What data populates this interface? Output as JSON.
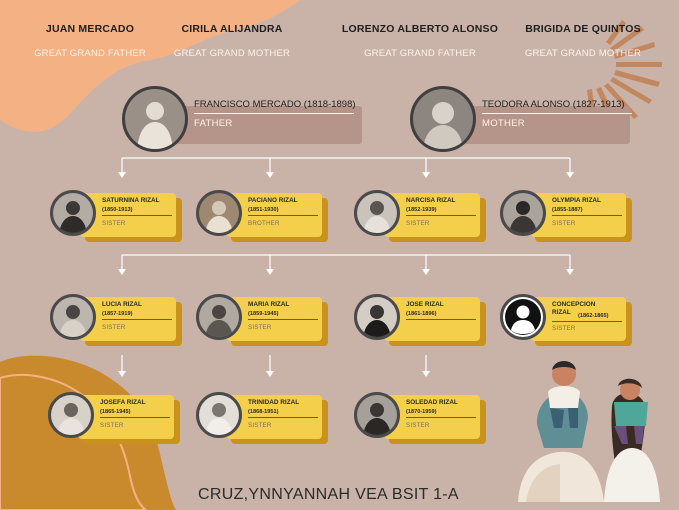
{
  "great_grandparents": [
    {
      "name": "JUAN MERCADO",
      "role": "GREAT GRAND FATHER"
    },
    {
      "name": "CIRILA ALIJANDRA",
      "role": "GREAT GRAND MOTHER"
    },
    {
      "name": "LORENZO ALBERTO ALONSO",
      "role": "GREAT GRAND FATHER"
    },
    {
      "name": "BRIGIDA DE QUINTOS",
      "role": "GREAT GRAND MOTHER"
    }
  ],
  "parents": [
    {
      "name": "FRANCISCO MERCADO (1818-1898)",
      "role": "FATHER"
    },
    {
      "name": "TEODORA ALONSO (1827-1913)",
      "role": "MOTHER"
    }
  ],
  "children": [
    {
      "name": "SATURNINA RIZAL",
      "years": "(1850-1913)",
      "role": "SISTER"
    },
    {
      "name": "PACIANO RIZAL",
      "years": "(1851-1930)",
      "role": "BROTHER"
    },
    {
      "name": "NARCISA RIZAL",
      "years": "(1852-1939)",
      "role": "SISTER"
    },
    {
      "name": "OLYMPIA RIZAL",
      "years": "(1855-1887)",
      "role": "SISTER"
    },
    {
      "name": "LUCIA RIZAL",
      "years": "(1857-1919)",
      "role": "SISTER"
    },
    {
      "name": "MARIA RIZAL",
      "years": "(1859-1945)",
      "role": "SISTER"
    },
    {
      "name": "JOSE RIZAL",
      "years": "(1861-1896)",
      "role": ""
    },
    {
      "name": "CONCEPCION RIZAL",
      "years": "(1862-1865)",
      "role": "SISTER"
    },
    {
      "name": "JOSEFA RIZAL",
      "years": "(1865-1945)",
      "role": "SISTER"
    },
    {
      "name": "TRINIDAD RIZAL",
      "years": "(1868-1951)",
      "role": "SISTER"
    },
    {
      "name": "SOLEDAD RIZAL",
      "years": "(1870-1959)",
      "role": "SISTER"
    }
  ],
  "footer": {
    "text": "CRUZ,YNNYANNAH VEA BSIT 1-A"
  },
  "colors": {
    "background": "#c9b3a8",
    "card": "#f4cf4c",
    "card_shadow": "#c9921a",
    "blob_peach": "#f4b184",
    "blob_orange": "#c98a2e",
    "sunburst": "#c2875f"
  }
}
